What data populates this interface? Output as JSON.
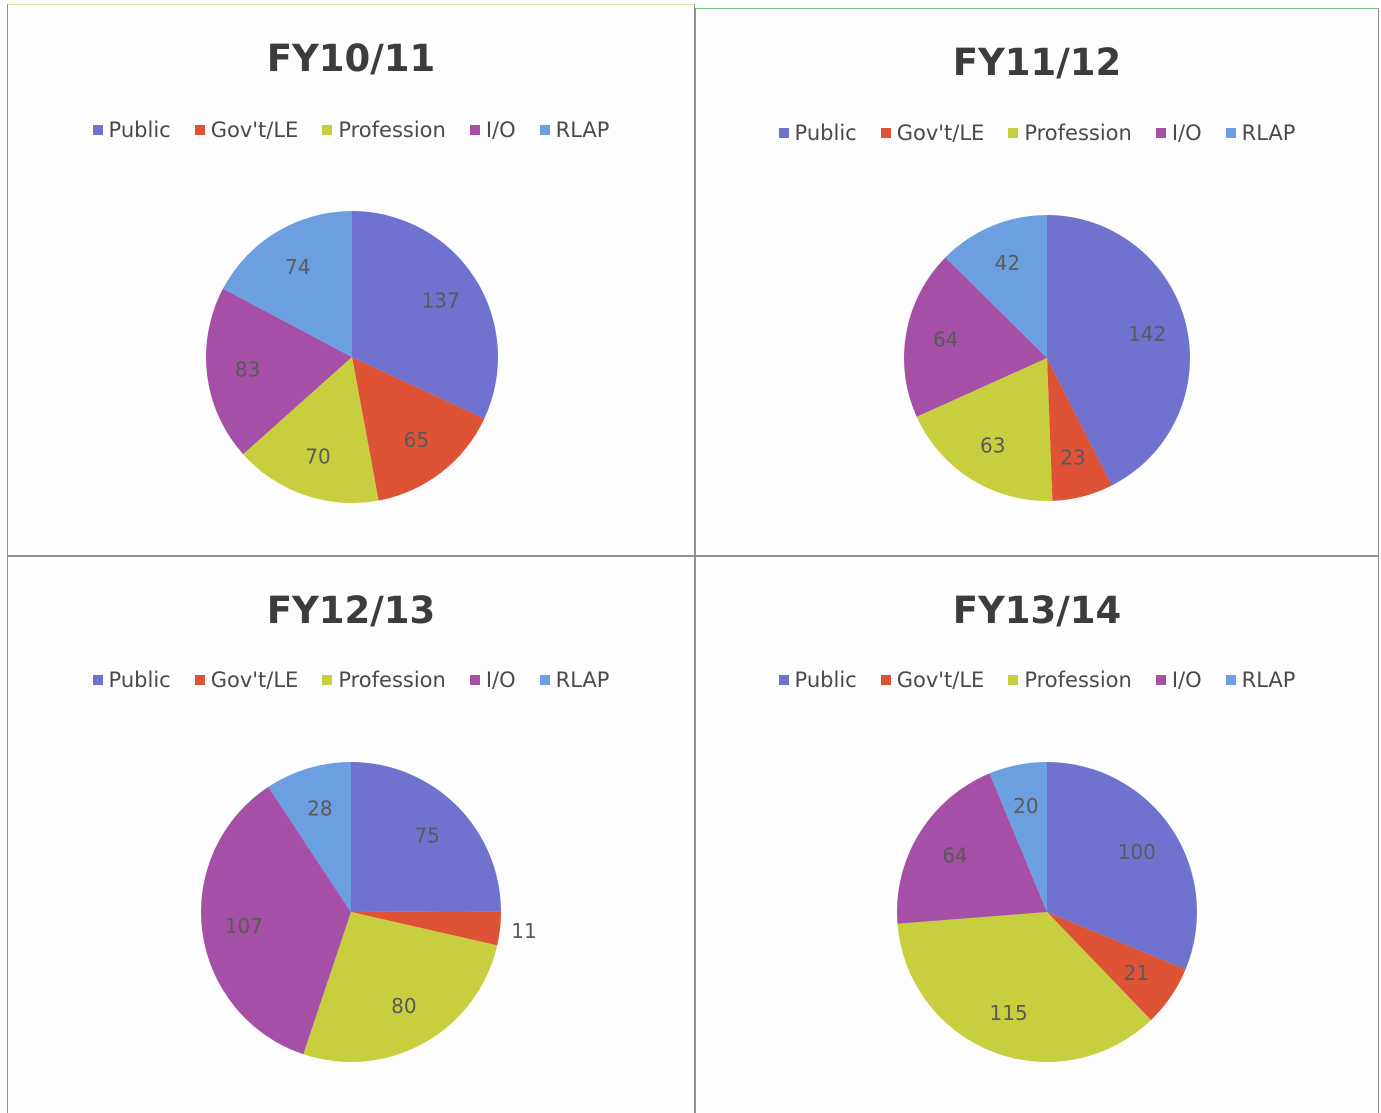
{
  "colors": {
    "Public": "#6f72cf",
    "Gov't/LE": "#de5236",
    "Profession": "#c7cf3f",
    "I/O": "#a64fa6",
    "RLAP": "#6c9fe0",
    "label_text": "#5a5a5a"
  },
  "chart_data": [
    {
      "type": "pie",
      "title": "FY10/11",
      "categories": [
        "Public",
        "Gov't/LE",
        "Profession",
        "I/O",
        "RLAP"
      ],
      "values": [
        137,
        65,
        70,
        83,
        74
      ],
      "labels": [
        "137",
        "65",
        "70",
        "83",
        "74"
      ],
      "legend_position": "top"
    },
    {
      "type": "pie",
      "title": "FY11/12",
      "categories": [
        "Public",
        "Gov't/LE",
        "Profession",
        "I/O",
        "RLAP"
      ],
      "values": [
        142,
        23,
        63,
        64,
        42
      ],
      "labels": [
        "142",
        "23",
        "63",
        "64",
        "42"
      ],
      "legend_position": "top"
    },
    {
      "type": "pie",
      "title": "FY12/13",
      "categories": [
        "Public",
        "Gov't/LE",
        "Profession",
        "I/O",
        "RLAP"
      ],
      "values": [
        75,
        11,
        80,
        107,
        28
      ],
      "labels": [
        "75",
        "11",
        "80",
        "107",
        "28"
      ],
      "legend_position": "top"
    },
    {
      "type": "pie",
      "title": "FY13/14",
      "categories": [
        "Public",
        "Gov't/LE",
        "Profession",
        "I/O",
        "RLAP"
      ],
      "values": [
        100,
        21,
        115,
        64,
        20
      ],
      "labels": [
        "100",
        "21",
        "115",
        "64",
        "20"
      ],
      "legend_position": "top"
    }
  ]
}
